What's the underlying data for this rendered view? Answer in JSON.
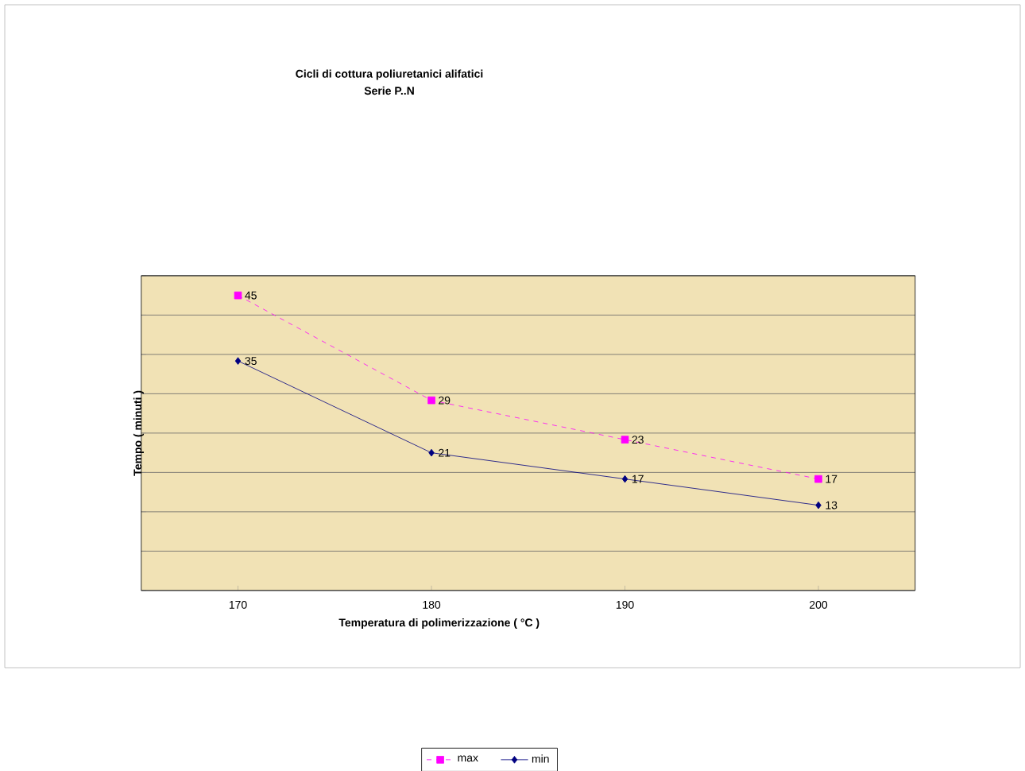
{
  "chart_data": {
    "type": "line",
    "title": "Cicli  di  cottura  poliuretanici  alifatici",
    "subtitle": "Serie  P..N",
    "xlabel": "Temperatura  di  polimerizzazione  ( °C )",
    "ylabel": "Tempo   ( minuti )",
    "categories": [
      "170",
      "180",
      "190",
      "200"
    ],
    "series": [
      {
        "name": "max",
        "color": "#ff00ff",
        "marker": "square",
        "line_style": "dashed",
        "values": [
          45,
          29,
          23,
          17
        ]
      },
      {
        "name": "min",
        "color": "#000080",
        "marker": "diamond",
        "line_style": "solid",
        "values": [
          35,
          21,
          17,
          13
        ]
      }
    ],
    "ylim": [
      0,
      48
    ],
    "yticks": [
      {
        "value": 0,
        "label": null
      },
      {
        "value": 6,
        "label": null
      },
      {
        "value": 12,
        "label": null
      },
      {
        "value": 18,
        "label": null
      },
      {
        "value": 24,
        "label": null
      },
      {
        "value": 30,
        "label": null
      },
      {
        "value": 36,
        "label": null
      },
      {
        "value": 42,
        "label": null
      },
      {
        "value": 48,
        "label": null
      }
    ],
    "grid": "y",
    "legend": "bottom",
    "data_labels": true,
    "tick_labels": "x"
  }
}
